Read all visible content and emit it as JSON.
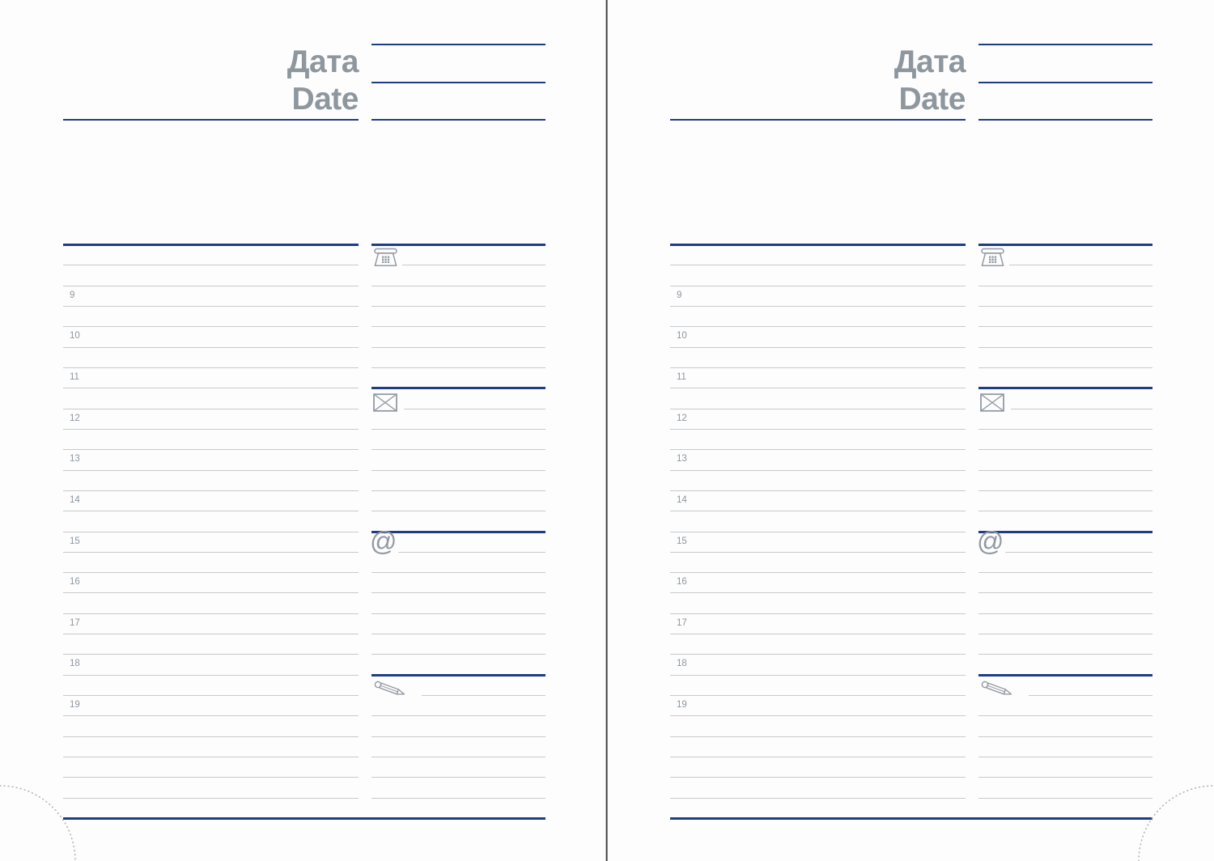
{
  "spread": {
    "pages": [
      {
        "side": "left"
      },
      {
        "side": "right"
      }
    ],
    "header": {
      "label_ru": "Дата",
      "label_en": "Date"
    },
    "hours": [
      "9",
      "10",
      "11",
      "12",
      "13",
      "14",
      "15",
      "16",
      "17",
      "18",
      "19"
    ],
    "contacts": [
      {
        "name": "phone-icon"
      },
      {
        "name": "envelope-icon"
      },
      {
        "name": "at-icon",
        "glyph": "@"
      },
      {
        "name": "pencil-icon"
      }
    ],
    "colors": {
      "accent": "#1f3d86",
      "rule_gray": "#c7c9ca",
      "text_gray": "#8e979e",
      "icon_gray": "#929ba2"
    }
  }
}
